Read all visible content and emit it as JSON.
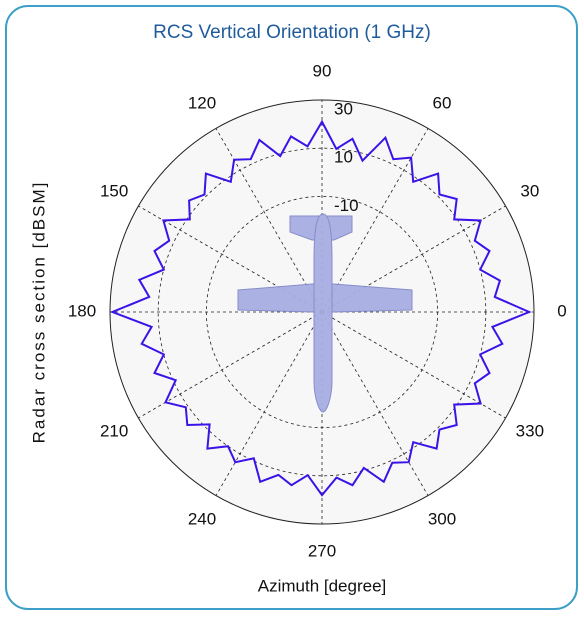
{
  "chart_data": {
    "type": "polar",
    "title": "RCS Vertical Orientation (1 GHz)",
    "xlabel": "Azimuth [degree]",
    "ylabel": "Radar cross section [dBSM]",
    "thetaticks": [
      0,
      30,
      60,
      90,
      120,
      150,
      180,
      210,
      240,
      270,
      300,
      330
    ],
    "rlim": [
      -58,
      30
    ],
    "rticks": [
      -10,
      10,
      30
    ],
    "grid": true,
    "series": [
      {
        "color": "#3b12e8",
        "theta": [
          0,
          5,
          10,
          15,
          20,
          25,
          30,
          35,
          40,
          45,
          50,
          55,
          60,
          65,
          70,
          75,
          80,
          85,
          90,
          95,
          100,
          105,
          110,
          115,
          120,
          125,
          130,
          135,
          140,
          145,
          150,
          155,
          160,
          165,
          170,
          175,
          180,
          185,
          190,
          195,
          200,
          205,
          210,
          215,
          220,
          225,
          230,
          235,
          240,
          245,
          250,
          255,
          260,
          265,
          270,
          275,
          280,
          285,
          290,
          295,
          300,
          305,
          310,
          315,
          320,
          325,
          330,
          335,
          340,
          345,
          350,
          355
        ],
        "values": [
          28,
          14,
          17,
          10,
          16,
          12,
          18,
          9,
          15,
          11,
          17,
          8,
          16,
          12,
          19,
          7,
          15,
          10,
          21,
          11,
          16,
          9,
          18,
          12,
          15,
          8,
          17,
          11,
          14,
          9,
          18,
          12,
          16,
          10,
          19,
          14,
          29,
          13,
          18,
          10,
          16,
          9,
          17,
          11,
          15,
          8,
          16,
          10,
          14,
          9,
          17,
          12,
          15,
          10,
          18,
          11,
          15,
          9,
          17,
          11,
          14,
          8,
          16,
          11,
          15,
          9,
          18,
          12,
          16,
          10,
          18,
          13
        ]
      }
    ]
  }
}
